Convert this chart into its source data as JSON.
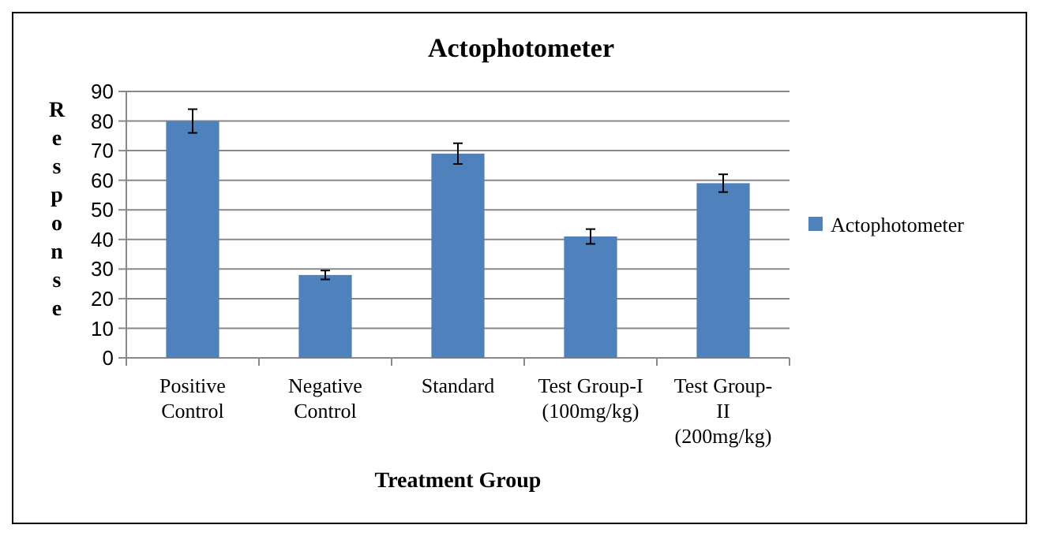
{
  "chart_data": {
    "type": "bar",
    "title": "Actophotometer",
    "xlabel": "Treatment Group",
    "ylabel": "Response",
    "categories": [
      "Positive Control",
      "Negative Control",
      "Standard",
      "Test Group-I (100mg/kg)",
      "Test Group-II (200mg/kg)"
    ],
    "series": [
      {
        "name": "Actophotometer",
        "color": "#4f81bd",
        "values": [
          80,
          28,
          69,
          41,
          59
        ],
        "errors": [
          4,
          1.5,
          3.5,
          2.5,
          3
        ]
      }
    ],
    "ylim": [
      0,
      90
    ],
    "yticks": [
      0,
      10,
      20,
      30,
      40,
      50,
      60,
      70,
      80,
      90
    ],
    "grid": "y",
    "legend": "right"
  }
}
